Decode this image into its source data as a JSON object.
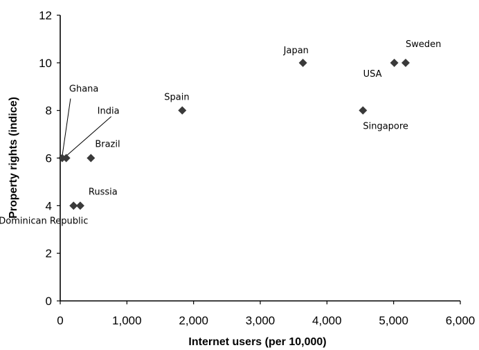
{
  "chart_data": {
    "type": "scatter",
    "xlabel": "Internet users (per 10,000)",
    "ylabel": "Property rights (indice)",
    "xlim": [
      0,
      6000
    ],
    "ylim": [
      0,
      12
    ],
    "x_ticks": [
      0,
      1000,
      2000,
      3000,
      4000,
      5000,
      6000
    ],
    "x_tick_labels": [
      "0",
      "1,000",
      "2,000",
      "3,000",
      "4,000",
      "5,000",
      "6,000"
    ],
    "y_ticks": [
      0,
      2,
      4,
      6,
      8,
      10,
      12
    ],
    "y_tick_labels": [
      "0",
      "2",
      "4",
      "6",
      "8",
      "10",
      "12"
    ],
    "grid": false,
    "marker": "diamond",
    "marker_color": "#3a3a3a",
    "points": [
      {
        "label": "Ghana",
        "x": 30,
        "y": 6
      },
      {
        "label": "India",
        "x": 90,
        "y": 6
      },
      {
        "label": "Brazil",
        "x": 460,
        "y": 6
      },
      {
        "label": "Dominican Republic",
        "x": 200,
        "y": 4
      },
      {
        "label": "Russia",
        "x": 300,
        "y": 4
      },
      {
        "label": "Spain",
        "x": 1830,
        "y": 8
      },
      {
        "label": "Japan",
        "x": 3640,
        "y": 10
      },
      {
        "label": "Singapore",
        "x": 4540,
        "y": 8
      },
      {
        "label": "USA",
        "x": 5010,
        "y": 10
      },
      {
        "label": "Sweden",
        "x": 5180,
        "y": 10
      }
    ]
  }
}
